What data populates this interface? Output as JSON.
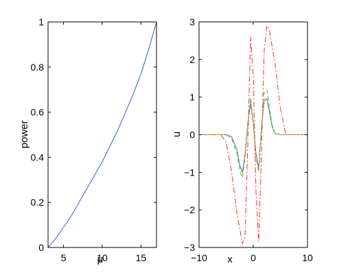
{
  "chart_data": [
    {
      "type": "line",
      "xlabel": "μ",
      "ylabel": "power",
      "xlim": [
        3,
        17
      ],
      "ylim": [
        0,
        1
      ],
      "xticks": [
        5,
        10,
        15
      ],
      "yticks": [
        0,
        0.2,
        0.4,
        0.6,
        0.8,
        1
      ],
      "xtick_labels": [
        "5",
        "10",
        "15"
      ],
      "ytick_labels": [
        "0",
        "0.2",
        "0.4",
        "0.6",
        "0.8",
        "1"
      ],
      "series": [
        {
          "color": "#2f5fd0",
          "style": "solid",
          "x": [
            3,
            4,
            5,
            6,
            7,
            8,
            9,
            10,
            11,
            12,
            13,
            14,
            15,
            16,
            17
          ],
          "y": [
            0,
            0.04,
            0.09,
            0.14,
            0.2,
            0.26,
            0.32,
            0.38,
            0.45,
            0.52,
            0.6,
            0.68,
            0.77,
            0.88,
            1.0
          ]
        }
      ]
    },
    {
      "type": "line",
      "xlabel": "x",
      "ylabel": "u",
      "xlim": [
        -10,
        10
      ],
      "ylim": [
        -3,
        3
      ],
      "xticks": [
        -10,
        0,
        10
      ],
      "yticks": [
        -3,
        -2,
        -1,
        0,
        1,
        2,
        3
      ],
      "xtick_labels": [
        "−10",
        "0",
        "10"
      ],
      "ytick_labels": [
        "−3",
        "−2",
        "−1",
        "0",
        "1",
        "2",
        "3"
      ],
      "series": [
        {
          "color": "#2f5fd0",
          "style": "solid",
          "x": [
            -10,
            -5,
            -4,
            -3,
            -2.5,
            -2,
            -1.5,
            -1,
            -0.5,
            0,
            0.5,
            1,
            1.5,
            2,
            2.5,
            3,
            3.5,
            4,
            5,
            10
          ],
          "y": [
            0,
            0,
            -0.05,
            -0.4,
            -0.8,
            -1.0,
            -0.5,
            0.3,
            0.85,
            0.3,
            -0.5,
            -0.9,
            0.2,
            0.9,
            0.95,
            0.6,
            0.2,
            0.03,
            0,
            0
          ]
        },
        {
          "color": "#33cc33",
          "style": "dashed",
          "x": [
            -10,
            -5,
            -4,
            -3,
            -2.5,
            -2,
            -1.5,
            -1,
            -0.5,
            0,
            0.5,
            1,
            1.5,
            2,
            2.5,
            3,
            3.5,
            4,
            5,
            10
          ],
          "y": [
            0,
            0,
            -0.1,
            -0.5,
            -0.95,
            -1.15,
            -0.6,
            0.3,
            1.0,
            0.35,
            -0.6,
            -1.0,
            0.2,
            1.1,
            1.2,
            0.7,
            0.25,
            0.04,
            0,
            0
          ]
        },
        {
          "color": "#ff2a2a",
          "style": "dashdot",
          "x": [
            -10,
            -6,
            -5,
            -4,
            -3,
            -2,
            -1.5,
            -1,
            -0.5,
            0,
            0.5,
            1,
            1.5,
            2,
            2.5,
            3,
            4,
            5,
            6,
            10
          ],
          "y": [
            0,
            0,
            -0.2,
            -1.0,
            -2.1,
            -2.9,
            -2.7,
            -0.2,
            2.6,
            1.6,
            -1.5,
            -2.85,
            -0.5,
            2.2,
            2.9,
            2.75,
            1.9,
            0.7,
            0,
            0
          ]
        },
        {
          "color": "#ff9900",
          "style": "dotted",
          "x": [
            -10,
            -5,
            -4,
            -3,
            -2.5,
            -2,
            -1.5,
            -1,
            -0.5,
            0,
            0.5,
            1,
            1.5,
            2,
            2.5,
            3,
            3.5,
            4,
            5,
            10
          ],
          "y": [
            0,
            0,
            -0.05,
            -0.4,
            -0.85,
            -1.05,
            -0.55,
            0.3,
            0.9,
            0.3,
            -0.55,
            -0.95,
            0.2,
            0.95,
            1.0,
            0.65,
            0.2,
            0.03,
            0,
            0
          ]
        }
      ]
    }
  ]
}
